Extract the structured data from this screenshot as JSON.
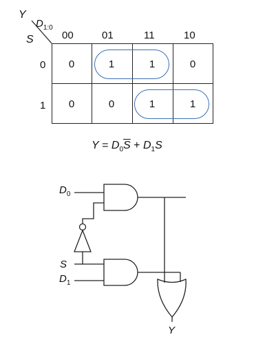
{
  "kmap": {
    "output_label": "Y",
    "col_var_base": "D",
    "col_var_sub": "1:0",
    "row_var": "S",
    "col_headers": [
      "00",
      "01",
      "11",
      "10"
    ],
    "row_headers": [
      "0",
      "1"
    ],
    "rows": [
      [
        "0",
        "1",
        "1",
        "0"
      ],
      [
        "0",
        "0",
        "1",
        "1"
      ]
    ]
  },
  "equation": {
    "lhs": "Y",
    "eq": " = ",
    "t1_var": "D",
    "t1_sub": "0",
    "t1_bar": "S",
    "plus": " + ",
    "t2_var": "D",
    "t2_sub": "1",
    "t2_s": "S"
  },
  "circuit": {
    "in_d0_base": "D",
    "in_d0_sub": "0",
    "in_s": "S",
    "in_d1_base": "D",
    "in_d1_sub": "1",
    "out_y": "Y"
  }
}
